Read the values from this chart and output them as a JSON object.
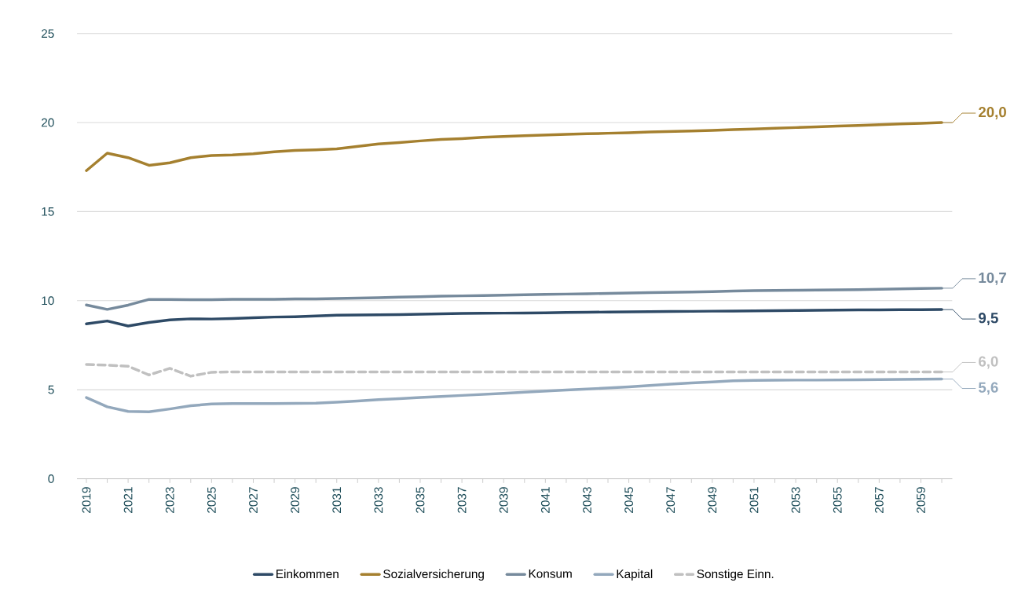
{
  "chart_data": {
    "type": "line",
    "categories": [
      "2019",
      null,
      "2021",
      null,
      "2023",
      null,
      "2025",
      null,
      "2027",
      null,
      "2029",
      null,
      "2031",
      null,
      "2033",
      null,
      "2035",
      null,
      "2037",
      null,
      "2039",
      null,
      "2041",
      null,
      "2043",
      null,
      "2045",
      null,
      "2047",
      null,
      "2049",
      null,
      "2051",
      null,
      "2053",
      null,
      "2055",
      null,
      "2057",
      null,
      "2059",
      null
    ],
    "ylim": [
      0,
      25
    ],
    "yticks": [
      0,
      5,
      10,
      15,
      20,
      25
    ],
    "grid": "y",
    "legend": "bottom",
    "series": [
      {
        "name": "Einkommen",
        "color": "#2e4a66",
        "line_style": "solid",
        "values": [
          8.7,
          8.86,
          8.58,
          8.78,
          8.92,
          8.98,
          8.97,
          9.0,
          9.04,
          9.08,
          9.1,
          9.14,
          9.18,
          9.2,
          9.21,
          9.22,
          9.24,
          9.26,
          9.28,
          9.29,
          9.3,
          9.31,
          9.32,
          9.34,
          9.35,
          9.36,
          9.37,
          9.38,
          9.39,
          9.4,
          9.41,
          9.42,
          9.43,
          9.44,
          9.45,
          9.46,
          9.47,
          9.48,
          9.48,
          9.49,
          9.49,
          9.5
        ],
        "value_labels": [
          null,
          null,
          null,
          null,
          null,
          null,
          null,
          null,
          null,
          null,
          null,
          null,
          null,
          null,
          null,
          null,
          null,
          null,
          null,
          null,
          null,
          null,
          null,
          null,
          null,
          null,
          null,
          null,
          null,
          null,
          null,
          null,
          null,
          null,
          null,
          null,
          null,
          null,
          null,
          null,
          null,
          "9,5"
        ]
      },
      {
        "name": "Sozialversicherung",
        "color": "#a5802f",
        "line_style": "solid",
        "values": [
          17.3,
          18.28,
          18.03,
          17.6,
          17.74,
          18.03,
          18.15,
          18.18,
          18.25,
          18.36,
          18.44,
          18.47,
          18.52,
          18.66,
          18.8,
          18.88,
          18.97,
          19.05,
          19.1,
          19.17,
          19.22,
          19.26,
          19.3,
          19.34,
          19.37,
          19.4,
          19.43,
          19.47,
          19.5,
          19.53,
          19.56,
          19.6,
          19.64,
          19.68,
          19.72,
          19.76,
          19.8,
          19.84,
          19.88,
          19.92,
          19.96,
          20.0
        ],
        "value_labels": [
          null,
          null,
          null,
          null,
          null,
          null,
          null,
          null,
          null,
          null,
          null,
          null,
          null,
          null,
          null,
          null,
          null,
          null,
          null,
          null,
          null,
          null,
          null,
          null,
          null,
          null,
          null,
          null,
          null,
          null,
          null,
          null,
          null,
          null,
          null,
          null,
          null,
          null,
          null,
          null,
          null,
          "20,0"
        ]
      },
      {
        "name": "Konsum",
        "color": "#768a9c",
        "line_style": "solid",
        "values": [
          9.76,
          9.51,
          9.75,
          10.07,
          10.07,
          10.06,
          10.06,
          10.08,
          10.08,
          10.08,
          10.1,
          10.1,
          10.12,
          10.14,
          10.17,
          10.2,
          10.22,
          10.25,
          10.27,
          10.29,
          10.31,
          10.33,
          10.35,
          10.37,
          10.39,
          10.41,
          10.43,
          10.45,
          10.47,
          10.49,
          10.51,
          10.54,
          10.56,
          10.57,
          10.58,
          10.6,
          10.61,
          10.62,
          10.64,
          10.66,
          10.68,
          10.7
        ],
        "value_labels": [
          null,
          null,
          null,
          null,
          null,
          null,
          null,
          null,
          null,
          null,
          null,
          null,
          null,
          null,
          null,
          null,
          null,
          null,
          null,
          null,
          null,
          null,
          null,
          null,
          null,
          null,
          null,
          null,
          null,
          null,
          null,
          null,
          null,
          null,
          null,
          null,
          null,
          null,
          null,
          null,
          null,
          "10,7"
        ]
      },
      {
        "name": "Kapital",
        "color": "#93a8bc",
        "line_style": "solid",
        "values": [
          4.56,
          4.04,
          3.78,
          3.76,
          3.92,
          4.1,
          4.2,
          4.22,
          4.22,
          4.22,
          4.23,
          4.24,
          4.3,
          4.37,
          4.44,
          4.5,
          4.56,
          4.62,
          4.68,
          4.74,
          4.8,
          4.86,
          4.92,
          4.98,
          5.04,
          5.1,
          5.16,
          5.24,
          5.31,
          5.38,
          5.44,
          5.5,
          5.52,
          5.53,
          5.54,
          5.54,
          5.55,
          5.56,
          5.57,
          5.58,
          5.59,
          5.6
        ],
        "value_labels": [
          null,
          null,
          null,
          null,
          null,
          null,
          null,
          null,
          null,
          null,
          null,
          null,
          null,
          null,
          null,
          null,
          null,
          null,
          null,
          null,
          null,
          null,
          null,
          null,
          null,
          null,
          null,
          null,
          null,
          null,
          null,
          null,
          null,
          null,
          null,
          null,
          null,
          null,
          null,
          null,
          null,
          "5,6"
        ]
      },
      {
        "name": "Sonstige Einn.",
        "color": "#c0c0c0",
        "line_style": "dashed",
        "values": [
          6.42,
          6.38,
          6.32,
          5.83,
          6.2,
          5.76,
          5.98,
          6.0,
          6.0,
          6.0,
          6.0,
          6.0,
          6.0,
          6.0,
          6.0,
          6.0,
          6.0,
          6.0,
          6.0,
          6.0,
          6.0,
          6.0,
          6.0,
          6.0,
          6.0,
          6.0,
          6.0,
          6.0,
          6.0,
          6.0,
          6.0,
          6.0,
          6.0,
          6.0,
          6.0,
          6.0,
          6.0,
          6.0,
          6.0,
          6.0,
          6.0,
          6.0
        ],
        "value_labels": [
          null,
          null,
          null,
          null,
          null,
          null,
          null,
          null,
          null,
          null,
          null,
          null,
          null,
          null,
          null,
          null,
          null,
          null,
          null,
          null,
          null,
          null,
          null,
          null,
          null,
          null,
          null,
          null,
          null,
          null,
          null,
          null,
          null,
          null,
          null,
          null,
          null,
          null,
          null,
          null,
          null,
          "6,0"
        ]
      }
    ]
  }
}
